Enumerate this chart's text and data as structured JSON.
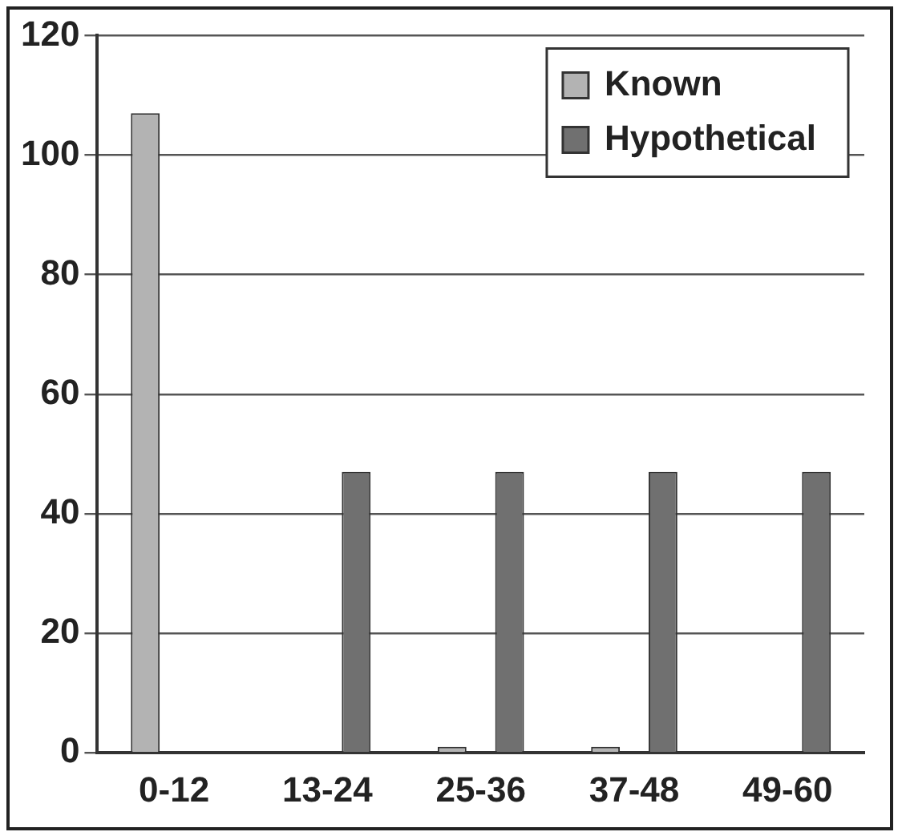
{
  "chart_data": {
    "type": "bar",
    "categories": [
      "0-12",
      "13-24",
      "25-36",
      "37-48",
      "49-60"
    ],
    "series": [
      {
        "name": "Known",
        "color": "#b3b3b3",
        "values": [
          107,
          0,
          1,
          1,
          0
        ]
      },
      {
        "name": "Hypothetical",
        "color": "#707070",
        "values": [
          0,
          47,
          47,
          47,
          47
        ]
      }
    ],
    "ylim": [
      0,
      120
    ],
    "yticks": [
      0,
      20,
      40,
      60,
      80,
      100,
      120
    ],
    "grid": "y",
    "legend": "top right"
  }
}
